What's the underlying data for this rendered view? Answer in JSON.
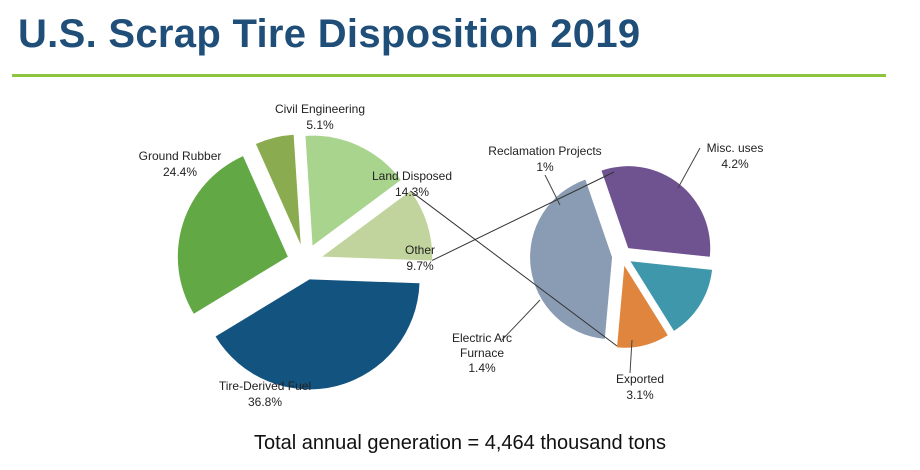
{
  "title": "U.S. Scrap Tire Disposition 2019",
  "footer": "Total annual generation = 4,464 thousand tons",
  "colors": {
    "title": "#1f4e79",
    "rule": "#8cc63f",
    "tire_derived_fuel": "#135380",
    "ground_rubber": "#62a844",
    "civil_engineering": "#8aab50",
    "land_disposed": "#a9d48e",
    "other": "#c2d49d",
    "misc_uses": "#8a9cb3",
    "exported": "#6f5290",
    "electric_arc_furnace": "#3f97ac",
    "reclamation_projects": "#e0853e"
  },
  "chart_data": {
    "type": "pie",
    "title": "U.S. Scrap Tire Disposition 2019",
    "main_pie": [
      {
        "label": "Tire-Derived Fuel",
        "value_label": "36.8%",
        "value": 36.8,
        "color_key": "tire_derived_fuel"
      },
      {
        "label": "Ground Rubber",
        "value_label": "24.4%",
        "value": 24.4,
        "color_key": "ground_rubber"
      },
      {
        "label": "Civil Engineering",
        "value_label": "5.1%",
        "value": 5.1,
        "color_key": "civil_engineering"
      },
      {
        "label": "Land Disposed",
        "value_label": "14.3%",
        "value": 14.3,
        "color_key": "land_disposed"
      },
      {
        "label": "Other",
        "value_label": "9.7%",
        "value": 9.7,
        "color_key": "other"
      }
    ],
    "breakout_of": "Other",
    "secondary_pie": [
      {
        "label": "Reclamation Projects",
        "value_label": "1%",
        "value": 1.0,
        "color_key": "reclamation_projects"
      },
      {
        "label": "Misc. uses",
        "value_label": "4.2%",
        "value": 4.2,
        "color_key": "misc_uses"
      },
      {
        "label": "Exported",
        "value_label": "3.1%",
        "value": 3.1,
        "color_key": "exported"
      },
      {
        "label": "Electric Arc Furnace",
        "value_label": "1.4%",
        "value": 1.4,
        "color_key": "electric_arc_furnace"
      }
    ]
  }
}
